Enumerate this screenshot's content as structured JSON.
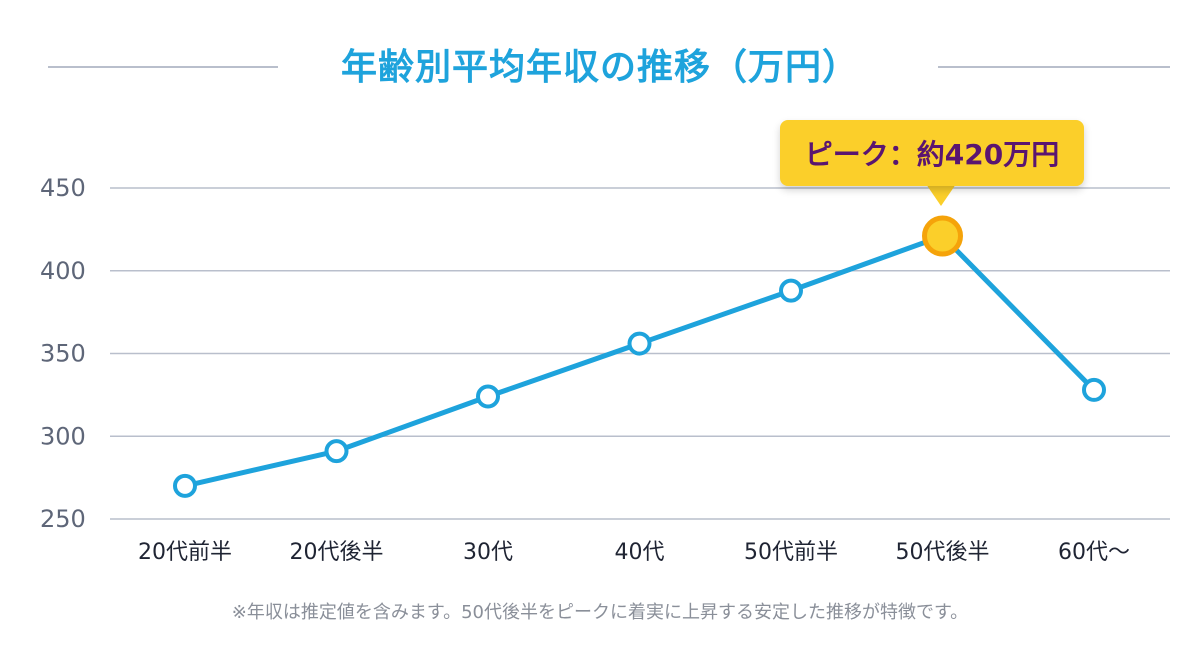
{
  "title": "年齢別平均年収の推移（万円）",
  "note": "※年収は推定値を含みます。50代後半をピークに着実に上昇する安定した推移が特徴です。",
  "callout": {
    "label": "ピーク：約420万円",
    "point_index": 5
  },
  "colors": {
    "title": "#1ea3dc",
    "line": "#1ea3dc",
    "peak_fill": "#fbcf2a",
    "peak_stroke": "#f5a30a",
    "callout_bg": "#fbcf2a",
    "callout_text": "#5a1570",
    "grid": "#b9bfcc"
  },
  "chart_data": {
    "type": "line",
    "title": "年齢別平均年収の推移（万円）",
    "categories": [
      "20代前半",
      "20代後半",
      "30代",
      "40代",
      "50代前半",
      "50代後半",
      "60代〜"
    ],
    "series": [
      {
        "values": [
          270,
          291,
          324,
          356,
          388,
          421,
          328
        ]
      }
    ],
    "ylim": [
      250,
      450
    ],
    "yticks": [
      250,
      300,
      350,
      400,
      450
    ],
    "grid": true,
    "xlabel": "",
    "ylabel": ""
  }
}
